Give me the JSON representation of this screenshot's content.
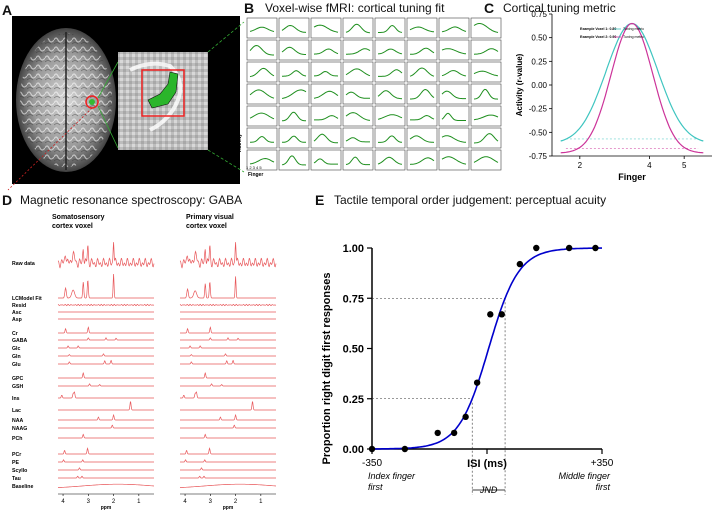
{
  "panels": {
    "A": {
      "letter": "A"
    },
    "B": {
      "letter": "B",
      "title": "Voxel-wise fMRI: cortical tuning fit",
      "ylabel": "Activity",
      "xlabel": "Finger",
      "ticks": "1 2 3 4 5"
    },
    "C": {
      "letter": "C",
      "title": "Cortical tuning metric"
    },
    "D": {
      "letter": "D",
      "title": "Magnetic resonance spectroscopy: GABA",
      "col1_title_1": "Somatosensory",
      "col1_title_2": "cortex voxel",
      "col2_title_1": "Primary visual",
      "col2_title_2": "cortex voxel",
      "ppm_label": "ppm",
      "ppm_ticks": [
        "4",
        "3",
        "2",
        "1"
      ],
      "metabolites": [
        "Raw data",
        "LCModel Fit",
        "Resid",
        "Asc",
        "Asp",
        "Cr",
        "GABA",
        "Glc",
        "Gln",
        "Glu",
        "GPC",
        "GSH",
        "Ins",
        "Lac",
        "NAA",
        "NAAG",
        "PCh",
        "PCr",
        "PE",
        "Scyllo",
        "Tau",
        "Baseline"
      ]
    },
    "E": {
      "letter": "E",
      "title": "Tactile temporal order judgement: perceptual acuity"
    }
  },
  "chart_data": [
    {
      "type": "line",
      "panel": "C",
      "title": "Cortical tuning metric",
      "xlabel": "Finger",
      "ylabel": "Activity (r-value)",
      "xlim": [
        1.2,
        5.8
      ],
      "ylim": [
        -0.75,
        0.75
      ],
      "xticks": [
        "2",
        "4",
        "5"
      ],
      "xtick_values": [
        2,
        4,
        5
      ],
      "yticks": [
        "0.75",
        "0.50",
        "0.25",
        "0.00",
        "-0.25",
        "-0.50",
        "-0.75"
      ],
      "ytick_values": [
        0.75,
        0.5,
        0.25,
        0,
        -0.25,
        -0.5,
        -0.75
      ],
      "legend": [
        "Example Voxel 1: 0.89",
        "Tuning metric",
        "Example Voxel 2: 0.90",
        "Tuning metric"
      ],
      "series": [
        {
          "name": "Example Voxel 1",
          "color": "#3fc5c0",
          "center": 3.5,
          "peak": 0.65,
          "width": 1.05,
          "floor": -0.62
        },
        {
          "name": "Example Voxel 2",
          "color": "#cc3399",
          "center": 3.5,
          "peak": 0.65,
          "width": 0.85,
          "floor": -0.72
        }
      ]
    },
    {
      "type": "scatter",
      "panel": "E",
      "title": "Tactile temporal order judgement: perceptual acuity",
      "xlabel": "ISI (ms)",
      "ylabel": "Proportion right digit first responses",
      "xlim": [
        -350,
        350
      ],
      "ylim": [
        0,
        1
      ],
      "xticks": [
        "-350",
        "+350"
      ],
      "xtick_values": [
        -350,
        350
      ],
      "yticks": [
        "0.00",
        "0.25",
        "0.50",
        "0.75",
        "1.00"
      ],
      "ytick_values": [
        0,
        0.25,
        0.5,
        0.75,
        1
      ],
      "x_left_caption_1": "Index finger",
      "x_left_caption_2": "first",
      "x_right_caption_1": "Middle finger",
      "x_right_caption_2": "first",
      "jnd_label": "JND",
      "x": [
        -350,
        -250,
        -150,
        -100,
        -65,
        -30,
        10,
        45,
        100,
        150,
        250,
        330
      ],
      "values": [
        0.0,
        0.0,
        0.08,
        0.08,
        0.16,
        0.33,
        0.67,
        0.67,
        0.92,
        1.0,
        1.0,
        1.0
      ],
      "fit": {
        "mu": 5,
        "slope": 0.022,
        "color": "#0000cc"
      },
      "reference_lines": {
        "y25": 0.25,
        "y75": 0.75,
        "x25": -45,
        "x75": 55
      }
    }
  ]
}
